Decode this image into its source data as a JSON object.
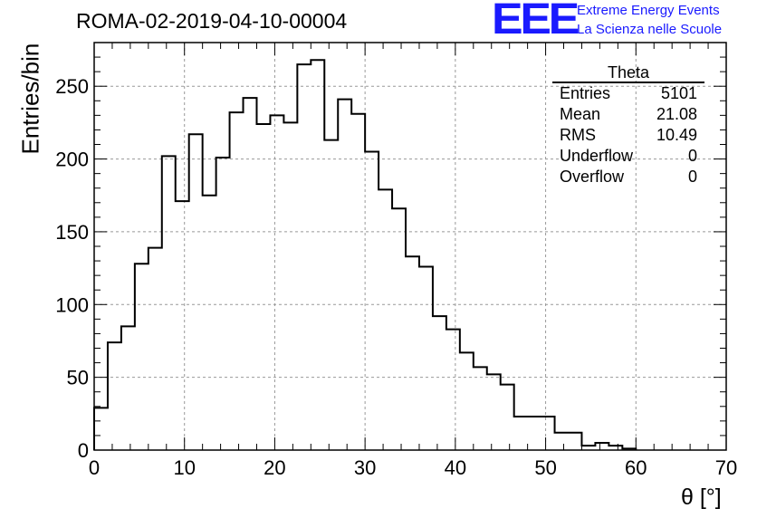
{
  "title": "ROMA-02-2019-04-10-00004",
  "logo": {
    "mark": "EEE",
    "line1": "Extreme Energy Events",
    "line2": "La Scienza nelle Scuole"
  },
  "stats": {
    "name": "Theta",
    "rows": [
      {
        "label": "Entries",
        "value": "5101"
      },
      {
        "label": "Mean",
        "value": "21.08"
      },
      {
        "label": "RMS",
        "value": "10.49"
      },
      {
        "label": "Underflow",
        "value": "0"
      },
      {
        "label": "Overflow",
        "value": "0"
      }
    ]
  },
  "colors": {
    "line": "#000000",
    "grid": "#999999",
    "logo": "#1a1aff"
  },
  "chart_data": {
    "type": "bar",
    "style": "step-histogram",
    "xlabel": "θ [°]",
    "ylabel": "Entries/bin",
    "xlim": [
      0,
      70
    ],
    "ylim": [
      0,
      280
    ],
    "bin_width": 1.5,
    "x_ticks": [
      0,
      10,
      20,
      30,
      40,
      50,
      60,
      70
    ],
    "y_ticks": [
      0,
      50,
      100,
      150,
      200,
      250
    ],
    "grid": true,
    "legend": "none",
    "bin_edges": [
      0,
      1.5,
      3,
      4.5,
      6,
      7.5,
      9,
      10.5,
      12,
      13.5,
      15,
      16.5,
      18,
      19.5,
      21,
      22.5,
      24,
      25.5,
      27,
      28.5,
      30,
      31.5,
      33,
      34.5,
      36,
      37.5,
      39,
      40.5,
      42,
      43.5,
      45,
      46.5,
      48,
      49.5,
      51,
      52.5,
      54,
      55.5,
      57,
      58.5,
      60
    ],
    "values": [
      29,
      74,
      85,
      128,
      139,
      202,
      171,
      217,
      175,
      201,
      232,
      242,
      224,
      230,
      225,
      265,
      268,
      213,
      241,
      231,
      205,
      179,
      166,
      133,
      126,
      92,
      83,
      67,
      57,
      52,
      45,
      23,
      23,
      23,
      12,
      12,
      3,
      5,
      3,
      1
    ]
  }
}
